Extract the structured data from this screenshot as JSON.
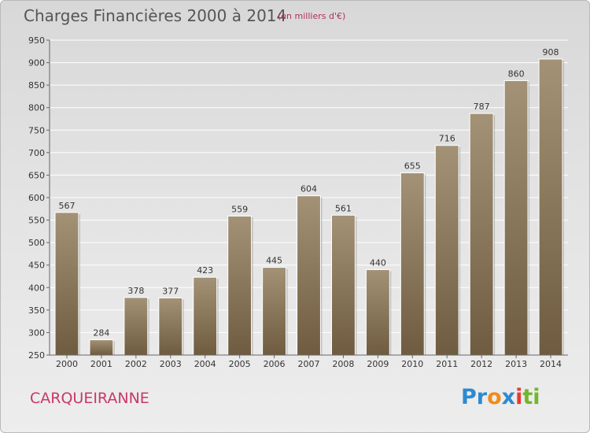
{
  "page": {
    "title": "Charges Financières 2000 à 2014",
    "subtitle": "(en milliers d'€)",
    "town": "CARQUEIRANNE",
    "logo": {
      "letters": [
        "Pr",
        "o",
        "x",
        "i",
        "ti"
      ]
    }
  },
  "colors": {
    "bar_top": "#a39276",
    "bar_bottom": "#6f5c40",
    "title": "#555555",
    "accent": "#c8386a",
    "grid": "#ffffff"
  },
  "chart_data": {
    "type": "bar",
    "title": "Charges Financières 2000 à 2014",
    "subtitle": "(en milliers d'€)",
    "categories": [
      "2000",
      "2001",
      "2002",
      "2003",
      "2004",
      "2005",
      "2006",
      "2007",
      "2008",
      "2009",
      "2010",
      "2011",
      "2012",
      "2013",
      "2014"
    ],
    "values": [
      567,
      284,
      378,
      377,
      423,
      559,
      445,
      604,
      561,
      440,
      655,
      716,
      787,
      860,
      908
    ],
    "ylim": [
      250,
      950
    ],
    "yticks": [
      250,
      300,
      350,
      400,
      450,
      500,
      550,
      600,
      650,
      700,
      750,
      800,
      850,
      900,
      950
    ],
    "grid": true,
    "legend": "none",
    "xlabel": "",
    "ylabel": ""
  }
}
